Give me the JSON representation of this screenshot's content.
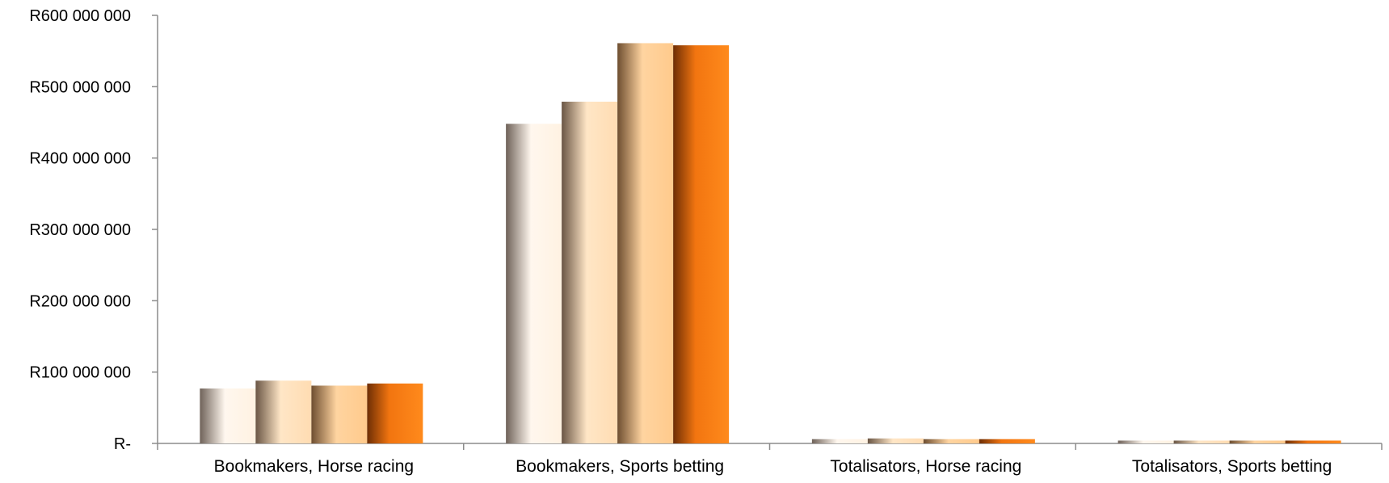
{
  "chart_data": {
    "type": "bar",
    "title": "",
    "xlabel": "",
    "ylabel": "",
    "categories": [
      "Bookmakers, Horse racing",
      "Bookmakers, Sports betting",
      "Totalisators, Horse racing",
      "Totalisators, Sports betting"
    ],
    "series": [
      {
        "values": [
          77000000,
          448000000,
          6000000,
          4000000
        ]
      },
      {
        "values": [
          88000000,
          479000000,
          7000000,
          4000000
        ]
      },
      {
        "values": [
          81000000,
          561000000,
          6000000,
          4000000
        ]
      },
      {
        "values": [
          84000000,
          558000000,
          6000000,
          4000000
        ]
      }
    ],
    "ylim": [
      0,
      600000000
    ],
    "yticks": [
      {
        "value": 0,
        "label": "R-"
      },
      {
        "value": 100000000,
        "label": "R100 000 000"
      },
      {
        "value": 200000000,
        "label": "R200 000 000"
      },
      {
        "value": 300000000,
        "label": "R300 000 000"
      },
      {
        "value": 400000000,
        "label": "R400 000 000"
      },
      {
        "value": 500000000,
        "label": "R500 000 000"
      },
      {
        "value": 600000000,
        "label": "R600 000 000"
      }
    ],
    "grid": false,
    "legend": "none",
    "series_colors": [
      "#fff4e6",
      "#ffe1bc",
      "#ffcf95",
      "#f57a10"
    ]
  }
}
